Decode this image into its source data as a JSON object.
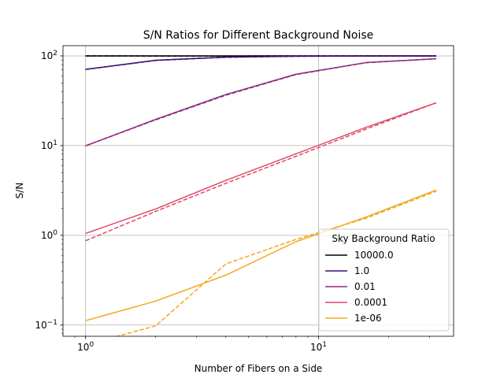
{
  "chart_data": {
    "type": "line",
    "title": "S/N Ratios for Different Background Noise",
    "xlabel": "Number of Fibers on a Side",
    "ylabel": "S/N",
    "xscale": "log",
    "yscale": "log",
    "xlim": [
      0.8,
      38
    ],
    "ylim": [
      0.075,
      130
    ],
    "grid": true,
    "x_ticks": [
      {
        "value": 1,
        "label": "10",
        "exp": "0"
      },
      {
        "value": 10,
        "label": "10",
        "exp": "1"
      }
    ],
    "y_ticks": [
      {
        "value": 0.1,
        "label": "10",
        "exp": "−1"
      },
      {
        "value": 1,
        "label": "10",
        "exp": "0"
      },
      {
        "value": 10,
        "label": "10",
        "exp": "1"
      },
      {
        "value": 100,
        "label": "10",
        "exp": "2"
      }
    ],
    "legend": {
      "title": "Sky Background Ratio",
      "position": "lower-right"
    },
    "x": [
      1,
      2,
      4,
      8,
      16,
      32
    ],
    "series": [
      {
        "name": "10000.0",
        "color": "#000004",
        "style": "solid",
        "values": [
          100,
          100,
          100,
          100,
          100,
          100
        ]
      },
      {
        "name": "",
        "color": "#000004",
        "style": "dashed",
        "values": [
          100,
          99.8,
          99.8,
          99.9,
          99.9,
          99.9
        ]
      },
      {
        "name": "1.0",
        "color": "#3b0f70",
        "style": "solid",
        "values": [
          70.7,
          89.4,
          97.0,
          99.2,
          99.8,
          99.9
        ]
      },
      {
        "name": "",
        "color": "#3b0f70",
        "style": "dashed",
        "values": [
          70.7,
          89.0,
          96.5,
          99.0,
          99.7,
          99.9
        ]
      },
      {
        "name": "0.01",
        "color": "#8c2981",
        "style": "solid",
        "values": [
          9.95,
          19.6,
          37.1,
          62.5,
          84.3,
          92.9
        ]
      },
      {
        "name": "",
        "color": "#8c2981",
        "style": "dashed",
        "values": [
          9.95,
          19.4,
          36.5,
          62.0,
          84.0,
          93.0
        ]
      },
      {
        "name": "0.0001",
        "color": "#de4968",
        "style": "solid",
        "values": [
          1.05,
          1.97,
          4.1,
          8.1,
          16.0,
          30.0
        ]
      },
      {
        "name": "",
        "color": "#de4968",
        "style": "dashed",
        "values": [
          0.87,
          1.85,
          3.8,
          7.6,
          15.3,
          30.0
        ]
      },
      {
        "name": "1e-06",
        "color": "#f3a81e",
        "style": "solid",
        "values": [
          0.112,
          0.185,
          0.36,
          0.85,
          1.6,
          3.2
        ]
      },
      {
        "name": "",
        "color": "#f3a81e",
        "style": "dashed",
        "values": [
          0.06,
          0.098,
          0.48,
          0.9,
          1.55,
          3.1
        ]
      }
    ]
  }
}
